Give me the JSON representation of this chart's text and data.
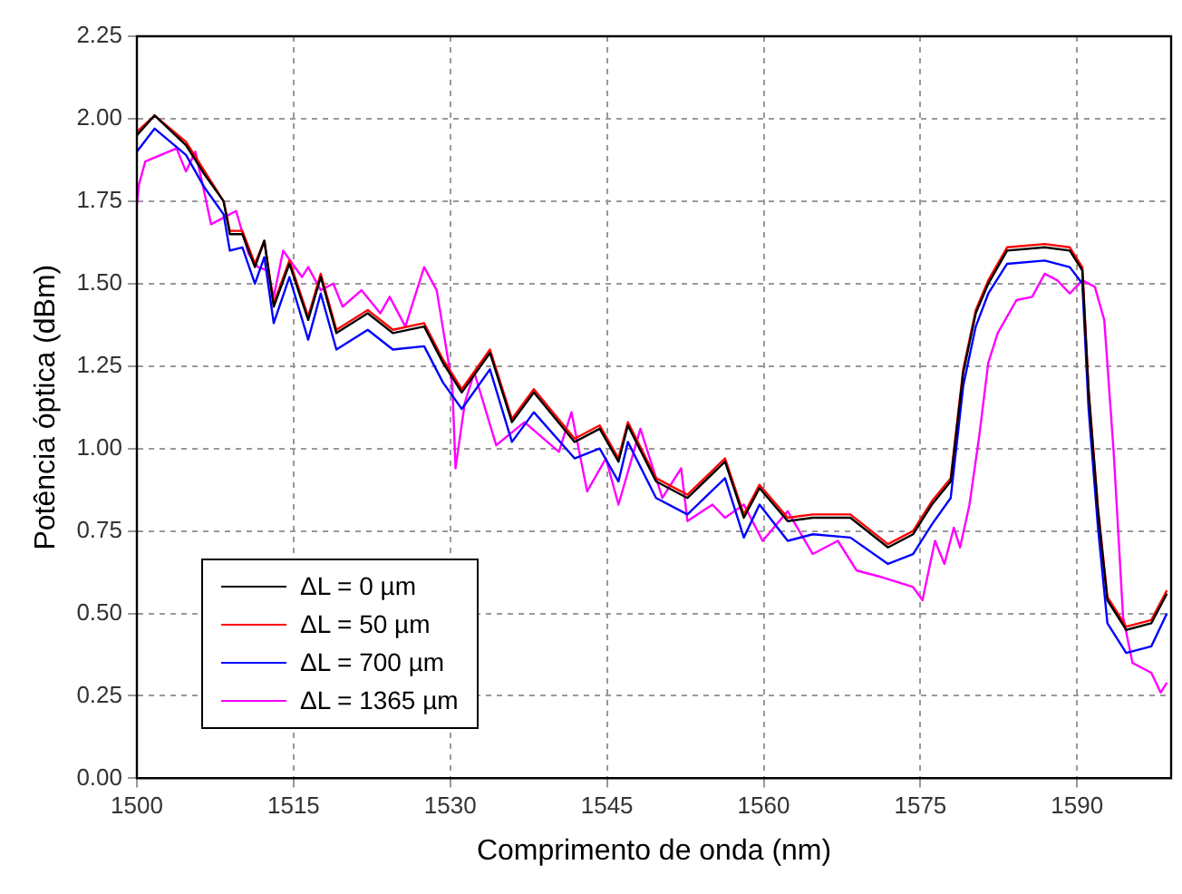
{
  "chart_data": {
    "type": "line",
    "xlabel": "Comprimento de onda (nm)",
    "ylabel": "Potência óptica (dBm)",
    "xlim": [
      1500,
      1599
    ],
    "ylim": [
      0,
      2.25
    ],
    "xticks": [
      1500,
      1515,
      1530,
      1545,
      1560,
      1575,
      1590
    ],
    "yticks": [
      {
        "value": 0,
        "label": "0.00"
      },
      {
        "value": 0.25,
        "label": "0.25"
      },
      {
        "value": 0.5,
        "label": "0.50"
      },
      {
        "value": 0.75,
        "label": "0.75"
      },
      {
        "value": 1,
        "label": "1.00"
      },
      {
        "value": 1.25,
        "label": "1.25"
      },
      {
        "value": 1.5,
        "label": "1.50"
      },
      {
        "value": 1.75,
        "label": "1.75"
      },
      {
        "value": 2,
        "label": "2.00"
      },
      {
        "value": 2.25,
        "label": "2.25"
      }
    ],
    "grid": true,
    "legend": "bottom left",
    "line_style": "solid",
    "marker": "none",
    "series": [
      {
        "name": "ΔL = 0 µm",
        "color": "#000000",
        "x": [
          1500,
          1501.7,
          1504.7,
          1506.5,
          1508.3,
          1508.9,
          1510.1,
          1511.3,
          1512.2,
          1513.1,
          1514.6,
          1516.4,
          1517.6,
          1519.1,
          1522.1,
          1524.5,
          1527.5,
          1529.3,
          1531.1,
          1533.8,
          1535.9,
          1538,
          1541.9,
          1544.3,
          1546.1,
          1547,
          1549.7,
          1552.7,
          1556.3,
          1558.1,
          1559.6,
          1562.3,
          1564.7,
          1568.3,
          1571.9,
          1574.3,
          1576.1,
          1577.9,
          1579.1,
          1580.3,
          1581.5,
          1583.3,
          1586.9,
          1589.3,
          1590.5,
          1591.1,
          1592,
          1592.9,
          1594.7,
          1597.1,
          1598.6
        ],
        "values": [
          1.95,
          2.01,
          1.92,
          1.83,
          1.75,
          1.65,
          1.65,
          1.55,
          1.63,
          1.43,
          1.56,
          1.39,
          1.52,
          1.35,
          1.41,
          1.35,
          1.37,
          1.26,
          1.17,
          1.29,
          1.08,
          1.17,
          1.02,
          1.06,
          0.96,
          1.07,
          0.9,
          0.85,
          0.96,
          0.79,
          0.88,
          0.78,
          0.79,
          0.79,
          0.7,
          0.74,
          0.83,
          0.9,
          1.23,
          1.41,
          1.5,
          1.6,
          1.61,
          1.6,
          1.54,
          1.17,
          0.81,
          0.54,
          0.45,
          0.47,
          0.56
        ]
      },
      {
        "name": "ΔL = 50 µm",
        "color": "#ff0000",
        "x": [
          1500,
          1501.7,
          1504.7,
          1506.5,
          1508.3,
          1508.9,
          1510.1,
          1511.3,
          1512.2,
          1513.1,
          1514.6,
          1516.4,
          1517.6,
          1519.1,
          1522.1,
          1524.5,
          1527.5,
          1529.3,
          1531.1,
          1533.8,
          1535.9,
          1538,
          1541.9,
          1544.3,
          1546.1,
          1547,
          1549.7,
          1552.7,
          1556.3,
          1558.1,
          1559.6,
          1562.3,
          1564.7,
          1568.3,
          1571.9,
          1574.3,
          1576.1,
          1577.9,
          1579.1,
          1580.3,
          1581.5,
          1583.3,
          1586.9,
          1589.3,
          1590.5,
          1591.1,
          1592,
          1592.9,
          1594.7,
          1597.1,
          1598.6
        ],
        "values": [
          1.96,
          2.01,
          1.93,
          1.84,
          1.75,
          1.66,
          1.66,
          1.56,
          1.63,
          1.44,
          1.57,
          1.4,
          1.53,
          1.36,
          1.42,
          1.36,
          1.38,
          1.27,
          1.18,
          1.3,
          1.09,
          1.18,
          1.03,
          1.07,
          0.97,
          1.08,
          0.91,
          0.86,
          0.97,
          0.8,
          0.89,
          0.79,
          0.8,
          0.8,
          0.71,
          0.75,
          0.84,
          0.91,
          1.24,
          1.42,
          1.51,
          1.61,
          1.62,
          1.61,
          1.55,
          1.18,
          0.82,
          0.55,
          0.46,
          0.48,
          0.57
        ]
      },
      {
        "name": "ΔL = 700 µm",
        "color": "#0000ff",
        "x": [
          1500,
          1501.7,
          1504.7,
          1506.5,
          1508.3,
          1508.9,
          1510.1,
          1511.3,
          1512.2,
          1513.1,
          1514.6,
          1516.4,
          1517.6,
          1519.1,
          1522.1,
          1524.5,
          1527.5,
          1529.3,
          1531.1,
          1533.8,
          1535.9,
          1538,
          1541.9,
          1544.3,
          1546.1,
          1547,
          1549.7,
          1552.7,
          1556.3,
          1558.1,
          1559.6,
          1562.3,
          1564.7,
          1568.3,
          1571.9,
          1574.3,
          1576.1,
          1577.9,
          1579.1,
          1580.3,
          1581.5,
          1583.3,
          1586.9,
          1589.3,
          1590.5,
          1591.1,
          1592,
          1592.9,
          1594.7,
          1597.1,
          1598.6
        ],
        "values": [
          1.9,
          1.97,
          1.89,
          1.79,
          1.71,
          1.6,
          1.61,
          1.5,
          1.58,
          1.38,
          1.52,
          1.33,
          1.47,
          1.3,
          1.36,
          1.3,
          1.31,
          1.2,
          1.12,
          1.24,
          1.02,
          1.11,
          0.97,
          1,
          0.9,
          1.02,
          0.85,
          0.8,
          0.91,
          0.73,
          0.83,
          0.72,
          0.74,
          0.73,
          0.65,
          0.68,
          0.77,
          0.85,
          1.19,
          1.37,
          1.47,
          1.56,
          1.57,
          1.55,
          1.5,
          1.12,
          0.76,
          0.47,
          0.38,
          0.4,
          0.5
        ]
      },
      {
        "name": "ΔL = 1365 µm",
        "color": "#ff00ff",
        "x": [
          1500,
          1500.2,
          1500.8,
          1503.8,
          1504.7,
          1505.6,
          1506.5,
          1507.1,
          1509.5,
          1510.7,
          1511.6,
          1512.5,
          1513.1,
          1514,
          1515.8,
          1516.4,
          1517.6,
          1518.8,
          1519.7,
          1521.5,
          1523.3,
          1524.2,
          1525.7,
          1527.5,
          1528.7,
          1530.2,
          1530.5,
          1531.4,
          1532.3,
          1534.4,
          1537.1,
          1540.4,
          1541.6,
          1543.1,
          1544.9,
          1546.1,
          1548.2,
          1550.3,
          1552.1,
          1552.7,
          1555.1,
          1556.3,
          1558.1,
          1559.9,
          1562.3,
          1564.7,
          1567.1,
          1568.9,
          1571.3,
          1574.3,
          1575.2,
          1576.4,
          1577.3,
          1578.2,
          1578.8,
          1579.7,
          1580.6,
          1581.5,
          1582.4,
          1584.2,
          1585.7,
          1586.9,
          1588.1,
          1589.3,
          1590.5,
          1591.7,
          1592.6,
          1593.5,
          1594.4,
          1595.3,
          1597.1,
          1598,
          1598.6
        ],
        "values": [
          1.74,
          1.8,
          1.87,
          1.91,
          1.84,
          1.9,
          1.77,
          1.68,
          1.72,
          1.59,
          1.55,
          1.54,
          1.46,
          1.6,
          1.52,
          1.55,
          1.48,
          1.5,
          1.43,
          1.48,
          1.41,
          1.46,
          1.37,
          1.55,
          1.48,
          1.19,
          0.94,
          1.14,
          1.23,
          1.01,
          1.08,
          0.99,
          1.11,
          0.87,
          0.97,
          0.83,
          1.06,
          0.85,
          0.94,
          0.78,
          0.83,
          0.79,
          0.83,
          0.72,
          0.81,
          0.68,
          0.72,
          0.63,
          0.61,
          0.58,
          0.54,
          0.72,
          0.65,
          0.76,
          0.7,
          0.83,
          1.03,
          1.26,
          1.35,
          1.45,
          1.46,
          1.53,
          1.51,
          1.47,
          1.51,
          1.49,
          1.39,
          0.99,
          0.49,
          0.35,
          0.32,
          0.26,
          0.29
        ]
      }
    ]
  }
}
